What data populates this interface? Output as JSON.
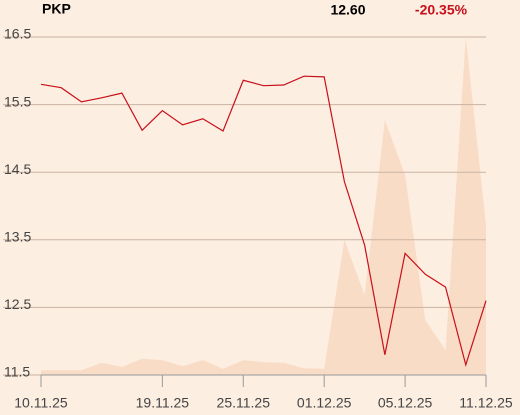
{
  "chart_data": {
    "type": "line",
    "title": "PKP",
    "annotations": [
      "12.60",
      "-20.35%"
    ],
    "categories": [
      "10.11.25",
      null,
      null,
      null,
      null,
      null,
      "19.11.25",
      null,
      null,
      null,
      "25.11.25",
      null,
      null,
      null,
      "01.12.25",
      null,
      null,
      null,
      "05.12.25",
      null,
      null,
      null,
      "11.12.25"
    ],
    "series": [
      {
        "type": "area",
        "color": "#f9dcc6",
        "values": [
          11.57,
          11.57,
          11.57,
          11.68,
          11.62,
          11.74,
          11.72,
          11.63,
          11.72,
          11.59,
          11.72,
          11.69,
          11.68,
          11.6,
          11.59,
          13.5,
          12.68,
          15.27,
          14.46,
          12.31,
          11.87,
          16.5,
          13.72
        ]
      },
      {
        "type": "line",
        "color": "#c8101a",
        "values": [
          15.8,
          15.75,
          15.54,
          15.6,
          15.67,
          15.12,
          15.41,
          15.2,
          15.29,
          15.11,
          15.86,
          15.78,
          15.79,
          15.92,
          15.91,
          14.36,
          13.42,
          11.8,
          13.3,
          12.99,
          12.8,
          11.65,
          12.6
        ]
      }
    ],
    "ylim": [
      11.5,
      16.5
    ],
    "yticks": [
      11.5,
      12.5,
      13.5,
      14.5,
      15.5,
      16.5
    ],
    "grid": true
  }
}
